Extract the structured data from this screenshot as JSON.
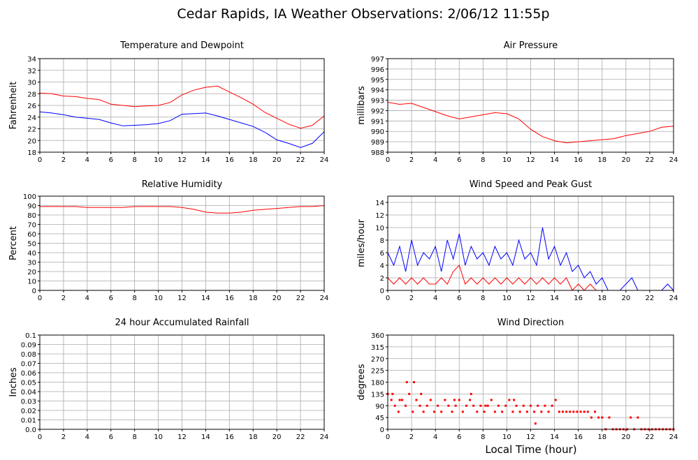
{
  "page": {
    "title": "Cedar Rapids, IA Weather Observations: 2/06/12 11:55p",
    "xaxis_label": "Local Time (hour)"
  },
  "colors": {
    "primary": "#ff0000",
    "secondary": "#0000ff",
    "grid": "#aaaaaa",
    "frame": "#000000"
  },
  "chart_data": [
    {
      "id": "temperature",
      "type": "line",
      "title": "Temperature and Dewpoint",
      "xlabel": "",
      "ylabel": "Fahrenheit",
      "xlim": [
        0,
        24
      ],
      "ylim": [
        18,
        34
      ],
      "xticks": [
        "0",
        "2",
        "4",
        "6",
        "8",
        "10",
        "12",
        "14",
        "16",
        "18",
        "20",
        "22",
        "24"
      ],
      "yticks": [
        "18",
        "20",
        "22",
        "24",
        "26",
        "28",
        "30",
        "32",
        "34"
      ],
      "grid": true,
      "series": [
        {
          "color": "#ff0000",
          "x": [
            0,
            1,
            2,
            3,
            4,
            5,
            6,
            7,
            8,
            9,
            10,
            11,
            12,
            13,
            14,
            15,
            16,
            17,
            18,
            19,
            20,
            21,
            22,
            23,
            24
          ],
          "y": [
            28.1,
            28.0,
            27.6,
            27.5,
            27.2,
            27.0,
            26.2,
            26.0,
            25.8,
            25.9,
            26.0,
            26.5,
            27.8,
            28.6,
            29.1,
            29.3,
            28.3,
            27.3,
            26.2,
            24.8,
            23.8,
            22.8,
            22.1,
            22.6,
            24.2
          ]
        },
        {
          "color": "#0000ff",
          "x": [
            0,
            1,
            2,
            3,
            4,
            5,
            6,
            7,
            8,
            9,
            10,
            11,
            12,
            13,
            14,
            15,
            16,
            17,
            18,
            19,
            20,
            21,
            22,
            23,
            24
          ],
          "y": [
            24.9,
            24.7,
            24.4,
            24.0,
            23.8,
            23.6,
            23.0,
            22.5,
            22.6,
            22.7,
            22.9,
            23.4,
            24.5,
            24.6,
            24.7,
            24.2,
            23.6,
            23.0,
            22.4,
            21.4,
            20.1,
            19.5,
            18.8,
            19.5,
            21.5
          ]
        }
      ]
    },
    {
      "id": "pressure",
      "type": "line",
      "title": "Air Pressure",
      "xlabel": "",
      "ylabel": "millibars",
      "xlim": [
        0,
        24
      ],
      "ylim": [
        988,
        997
      ],
      "xticks": [
        "0",
        "2",
        "4",
        "6",
        "8",
        "10",
        "12",
        "14",
        "16",
        "18",
        "20",
        "22",
        "24"
      ],
      "yticks": [
        "988",
        "989",
        "990",
        "991",
        "992",
        "993",
        "994",
        "995",
        "996",
        "997"
      ],
      "grid": true,
      "series": [
        {
          "color": "#ff0000",
          "x": [
            0,
            1,
            2,
            3,
            4,
            5,
            6,
            7,
            8,
            9,
            10,
            11,
            12,
            13,
            14,
            15,
            16,
            17,
            18,
            19,
            20,
            21,
            22,
            23,
            24
          ],
          "y": [
            992.8,
            992.6,
            992.7,
            992.3,
            991.9,
            991.5,
            991.2,
            991.4,
            991.6,
            991.8,
            991.7,
            991.2,
            990.2,
            989.5,
            989.1,
            988.9,
            989.0,
            989.1,
            989.2,
            989.3,
            989.6,
            989.8,
            990.0,
            990.4,
            990.5
          ]
        }
      ]
    },
    {
      "id": "humidity",
      "type": "line",
      "title": "Relative Humidity",
      "xlabel": "",
      "ylabel": "Percent",
      "xlim": [
        0,
        24
      ],
      "ylim": [
        0,
        100
      ],
      "xticks": [
        "0",
        "2",
        "4",
        "6",
        "8",
        "10",
        "12",
        "14",
        "16",
        "18",
        "20",
        "22",
        "24"
      ],
      "yticks": [
        "0",
        "10",
        "20",
        "30",
        "40",
        "50",
        "60",
        "70",
        "80",
        "90",
        "100"
      ],
      "grid": true,
      "series": [
        {
          "color": "#ff0000",
          "x": [
            0,
            1,
            2,
            3,
            4,
            5,
            6,
            7,
            8,
            9,
            10,
            11,
            12,
            13,
            14,
            15,
            16,
            17,
            18,
            19,
            20,
            21,
            22,
            23,
            24
          ],
          "y": [
            89,
            89,
            89,
            89,
            88,
            88,
            88,
            88,
            89,
            89,
            89,
            89,
            88,
            86,
            83,
            82,
            82,
            83,
            85,
            86,
            87,
            88,
            89,
            89,
            90
          ]
        }
      ]
    },
    {
      "id": "wind",
      "type": "line",
      "title": "Wind Speed and Peak Gust",
      "xlabel": "",
      "ylabel": "miles/hour",
      "xlim": [
        0,
        24
      ],
      "ylim": [
        0,
        15
      ],
      "xticks": [
        "0",
        "2",
        "4",
        "6",
        "8",
        "10",
        "12",
        "14",
        "16",
        "18",
        "20",
        "22",
        "24"
      ],
      "yticks": [
        "0",
        "2",
        "4",
        "6",
        "8",
        "10",
        "12",
        "14"
      ],
      "grid": true,
      "series": [
        {
          "color": "#0000ff",
          "x": [
            0,
            0.5,
            1,
            1.5,
            2,
            2.5,
            3,
            3.5,
            4,
            4.5,
            5,
            5.5,
            6,
            6.5,
            7,
            7.5,
            8,
            8.5,
            9,
            9.5,
            10,
            10.5,
            11,
            11.5,
            12,
            12.5,
            13,
            13.5,
            14,
            14.5,
            15,
            15.5,
            16,
            16.5,
            17,
            17.5,
            18,
            18.5,
            19,
            19.5,
            20,
            20.5,
            21,
            21.5,
            22,
            22.5,
            23,
            23.5,
            24
          ],
          "y": [
            6,
            4,
            7,
            3,
            8,
            4,
            6,
            5,
            7,
            3,
            8,
            5,
            9,
            4,
            7,
            5,
            6,
            4,
            7,
            5,
            6,
            4,
            8,
            5,
            6,
            4,
            10,
            5,
            7,
            4,
            6,
            3,
            4,
            2,
            3,
            1,
            2,
            0,
            0,
            0,
            1,
            2,
            0,
            0,
            0,
            0,
            0,
            1,
            0
          ]
        },
        {
          "color": "#ff0000",
          "x": [
            0,
            0.5,
            1,
            1.5,
            2,
            2.5,
            3,
            3.5,
            4,
            4.5,
            5,
            5.5,
            6,
            6.5,
            7,
            7.5,
            8,
            8.5,
            9,
            9.5,
            10,
            10.5,
            11,
            11.5,
            12,
            12.5,
            13,
            13.5,
            14,
            14.5,
            15,
            15.5,
            16,
            16.5,
            17,
            17.5,
            18,
            18.5,
            19,
            19.5,
            20,
            20.5,
            21,
            21.5,
            22,
            22.5,
            23,
            23.5,
            24
          ],
          "y": [
            2,
            1,
            2,
            1,
            2,
            1,
            2,
            1,
            1,
            2,
            1,
            3,
            4,
            1,
            2,
            1,
            2,
            1,
            2,
            1,
            2,
            1,
            2,
            1,
            2,
            1,
            2,
            1,
            2,
            1,
            2,
            0,
            1,
            0,
            1,
            0,
            0,
            0,
            0,
            0,
            0,
            0,
            0,
            0,
            0,
            0,
            0,
            0,
            0
          ]
        }
      ]
    },
    {
      "id": "rainfall",
      "type": "line",
      "title": "24 hour Accumulated Rainfall",
      "xlabel": "",
      "ylabel": "Inches",
      "xlim": [
        0,
        24
      ],
      "ylim": [
        0,
        0.1
      ],
      "xticks": [
        "0",
        "2",
        "4",
        "6",
        "8",
        "10",
        "12",
        "14",
        "16",
        "18",
        "20",
        "22",
        "24"
      ],
      "yticks": [
        "0.0",
        "0.01",
        "0.02",
        "0.03",
        "0.04",
        "0.05",
        "0.06",
        "0.07",
        "0.08",
        "0.09",
        "0.1"
      ],
      "grid": true,
      "series": [
        {
          "color": "#ff0000",
          "x": [
            0,
            24
          ],
          "y": [
            0,
            0
          ]
        }
      ]
    },
    {
      "id": "direction",
      "type": "scatter",
      "title": "Wind Direction",
      "xlabel": "Local Time (hour)",
      "ylabel": "degrees",
      "xlim": [
        0,
        24
      ],
      "ylim": [
        0,
        360
      ],
      "xticks": [
        "0",
        "2",
        "4",
        "6",
        "8",
        "10",
        "12",
        "14",
        "16",
        "18",
        "20",
        "22",
        "24"
      ],
      "yticks": [
        "0",
        "45",
        "90",
        "135",
        "180",
        "225",
        "270",
        "315",
        "360"
      ],
      "grid": true,
      "series": [
        {
          "color": "#ff0000",
          "x": [
            0,
            0.3,
            0.6,
            0.9,
            1.2,
            1.5,
            1.8,
            2.1,
            2.4,
            2.7,
            3.0,
            3.3,
            3.6,
            3.9,
            4.2,
            4.5,
            4.8,
            5.1,
            5.4,
            5.7,
            6.0,
            6.3,
            6.6,
            6.9,
            7.2,
            7.5,
            7.8,
            8.1,
            8.4,
            8.7,
            9.0,
            9.3,
            9.6,
            9.9,
            10.2,
            10.5,
            10.8,
            11.1,
            11.4,
            11.7,
            12.0,
            12.3,
            12.6,
            12.9,
            13.2,
            13.5,
            13.8,
            14.1,
            14.4,
            14.7,
            15.0,
            15.3,
            15.6,
            15.9,
            16.2,
            16.5,
            16.8,
            17.1,
            17.4,
            17.7,
            18.0,
            18.3,
            18.6,
            18.9,
            19.2,
            19.5,
            19.8,
            20.1,
            20.4,
            20.7,
            21.0,
            21.3,
            21.6,
            21.9,
            22.2,
            22.5,
            22.8,
            23.1,
            23.4,
            23.7,
            24.0,
            1.6,
            2.2,
            12.4,
            0.4,
            1.0,
            2.8,
            5.6,
            7.0,
            8.2,
            10.6
          ],
          "y": [
            135,
            112,
            90,
            67,
            112,
            90,
            135,
            67,
            112,
            90,
            67,
            90,
            112,
            67,
            90,
            67,
            112,
            90,
            67,
            90,
            112,
            67,
            90,
            112,
            90,
            67,
            90,
            67,
            90,
            112,
            67,
            90,
            67,
            90,
            112,
            67,
            90,
            67,
            90,
            67,
            90,
            67,
            90,
            67,
            90,
            67,
            90,
            112,
            67,
            67,
            67,
            67,
            67,
            67,
            67,
            67,
            67,
            45,
            67,
            45,
            45,
            0,
            45,
            0,
            0,
            0,
            0,
            0,
            45,
            0,
            45,
            0,
            0,
            0,
            0,
            0,
            0,
            0,
            0,
            0,
            0,
            180,
            180,
            22,
            135,
            112,
            135,
            112,
            135,
            90,
            112
          ]
        }
      ]
    }
  ]
}
